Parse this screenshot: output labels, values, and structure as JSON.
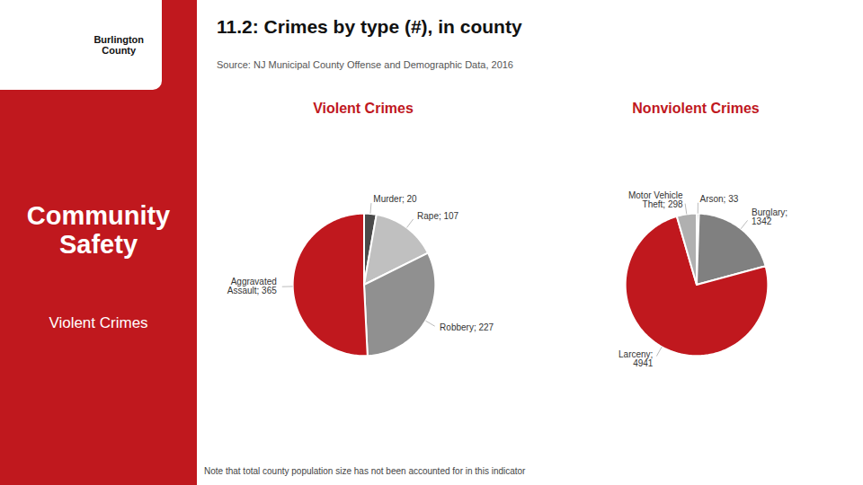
{
  "title": "11.2: Crimes by type (#), in county",
  "subtitle": "Source: NJ Municipal County Offense and Demographic Data, 2016",
  "annotations": [
    "Burlington\nCounty",
    "Community\nSafety",
    "Violent Crimes",
    "Note that total county population size has not been accounted for in this indicator"
  ],
  "color": "#c0181e",
  "chart_data": [
    {
      "type": "pie",
      "title": "Violent Crimes",
      "categories": [
        "Murder",
        "Rape",
        "Robbery",
        "Aggravated\nAssault"
      ],
      "values": [
        20,
        107,
        227,
        365
      ],
      "value_labels": [
        "Murder; 20",
        "Rape; 107",
        "Robbery; 227",
        "Aggravated\nAssault; 365"
      ],
      "colors": [
        "#4a4a4a",
        "#c0c0c0",
        "#909090",
        "#c0181e"
      ],
      "data_labels": true
    },
    {
      "type": "pie",
      "title": "Nonviolent Crimes",
      "categories": [
        "Arson",
        "Burglary",
        "Larceny",
        "Motor Vehicle\nTheft"
      ],
      "values": [
        33,
        1342,
        4941,
        298
      ],
      "value_labels": [
        "Arson; 33",
        "Burglary;\n1342",
        "Larceny;\n4941",
        "Motor Vehicle\nTheft; 298"
      ],
      "colors": [
        "#4a4a4a",
        "#808080",
        "#c0181e",
        "#b0b0b0"
      ],
      "data_labels": true
    }
  ]
}
